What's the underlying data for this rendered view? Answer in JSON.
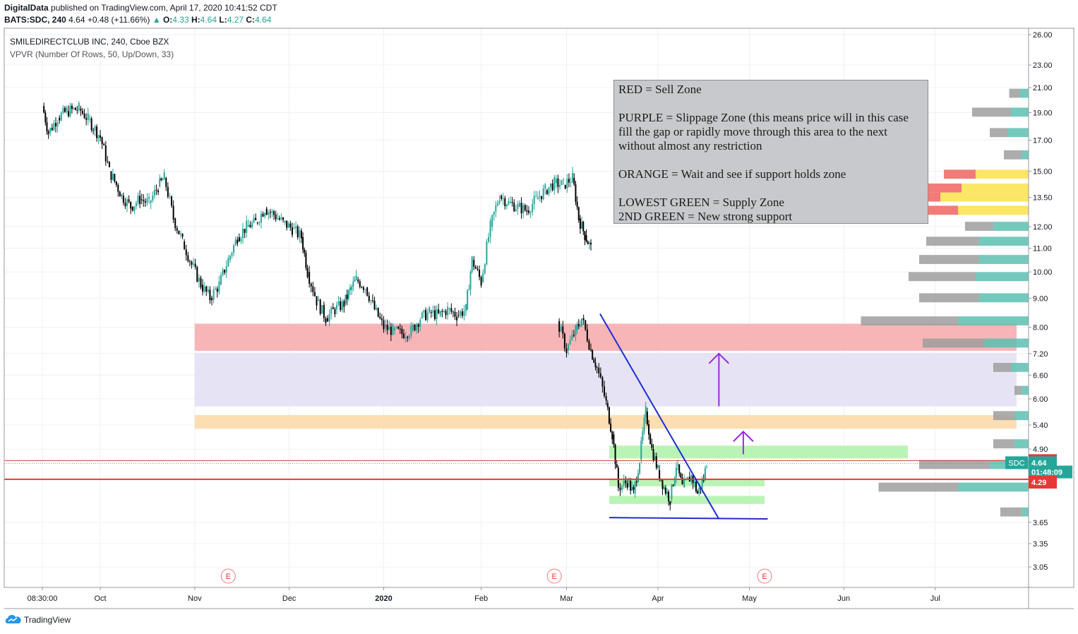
{
  "header": {
    "publisher": "DigitalData",
    "published_text": "published on TradingView.com, April 17, 2020 10:41:52 CDT",
    "symbol": "BATS:SDC, 240",
    "last": "4.64",
    "change_arrow": "▲",
    "change": "+0.48 (+11.66%)",
    "o_label": "O:",
    "o_value": "4.33",
    "h_label": "H:",
    "h_value": "4.64",
    "l_label": "L:",
    "l_value": "4.27",
    "c_label": "C:",
    "c_value": "4.64"
  },
  "legend": {
    "series_title": "SMILEDIRECTCLUB INC, 240, Cboe BZX",
    "indicator": "VPVR (Number Of Rows, 50, Up/Down, 33)"
  },
  "annotation": {
    "line1": "RED = Sell Zone",
    "line2": "PURPLE = Slippage Zone (this means price will in this case fill the gap or rapidly move through this area to the next without almost any restriction",
    "line3": "ORANGE = Wait and see if support holds zone",
    "line4": "LOWEST GREEN = Supply Zone",
    "line5": "2ND GREEN = New strong support"
  },
  "footer": {
    "brand": "TradingView"
  },
  "colors": {
    "up": "#26a69a",
    "down": "#000000",
    "red_zone": "#f7a8aa",
    "purple_zone": "#e2dff2",
    "orange_zone": "#fbd8a5",
    "green_zone": "#aef2a8",
    "trendline": "#1e2cd6",
    "arrow": "#9c27e0",
    "price_line": "#e53935",
    "vp_up": "#5dbfb0",
    "vp_down": "#9e9e9e",
    "vp_value_area_up": "#fce24a",
    "vp_value_area_down": "#f06460"
  },
  "chart_data": {
    "type": "candlestick",
    "title": "SMILEDIRECTCLUB INC, 240, Cboe BZX",
    "x_tick_labels": [
      "08:30:00",
      "Oct",
      "Nov",
      "Dec",
      "2020",
      "Feb",
      "Mar",
      "Apr",
      "May",
      "Jun",
      "Jul"
    ],
    "y_tick_labels": [
      "26.00",
      "23.00",
      "21.00",
      "19.00",
      "17.00",
      "15.00",
      "13.50",
      "12.00",
      "11.00",
      "10.00",
      "9.00",
      "8.00",
      "7.20",
      "6.60",
      "6.00",
      "5.40",
      "4.90",
      "3.65",
      "3.35",
      "3.05"
    ],
    "y_scale": "log",
    "ylim": [
      2.8,
      27
    ],
    "price_labels": [
      {
        "text": "4.68",
        "value": 4.68,
        "kind": "red"
      },
      {
        "text": "4.64",
        "value": 4.64,
        "kind": "last",
        "tag": "SDC"
      },
      {
        "text": "01:48:09",
        "value": 4.47,
        "kind": "countdown"
      },
      {
        "text": "4.29",
        "value": 4.29,
        "kind": "red"
      }
    ],
    "horizontal_lines": [
      4.68,
      4.34
    ],
    "zones": [
      {
        "name": "RED",
        "from": 7.28,
        "to": 8.12,
        "start": "2019-11-01",
        "end": "2020-07-30"
      },
      {
        "name": "PURPLE",
        "from": 5.82,
        "to": 7.22,
        "start": "2019-11-01",
        "end": "2020-07-30"
      },
      {
        "name": "ORANGE",
        "from": 5.32,
        "to": 5.62,
        "start": "2019-11-01",
        "end": "2020-07-30"
      },
      {
        "name": "2ND GREEN",
        "from": 4.72,
        "to": 4.97,
        "start": "2020-03-16",
        "end": "2020-06-22"
      },
      {
        "name": "GREEN",
        "from": 4.22,
        "to": 4.34,
        "start": "2020-03-16",
        "end": "2020-05-06"
      },
      {
        "name": "LOWEST GREEN",
        "from": 3.93,
        "to": 4.06,
        "start": "2020-03-16",
        "end": "2020-05-06"
      }
    ],
    "trendlines": [
      {
        "from": [
          "2020-03-13",
          8.45
        ],
        "to": [
          "2020-04-21",
          3.7
        ]
      },
      {
        "from": [
          "2020-03-16",
          3.72
        ],
        "to": [
          "2020-05-07",
          3.7
        ]
      }
    ],
    "arrows": [
      {
        "x": "2020-04-21",
        "from": 5.82,
        "to": 7.2
      },
      {
        "x": "2020-04-29",
        "from": 4.8,
        "to": 5.26
      }
    ],
    "earnings_markers": [
      "2019-11-12",
      "2020-02-27",
      "2020-05-06"
    ],
    "series": [
      {
        "name": "SDC",
        "points": [
          [
            "2019-09-12",
            19.5
          ],
          [
            "2019-09-14",
            17.5
          ],
          [
            "2019-09-17",
            18.6
          ],
          [
            "2019-09-20",
            19.1
          ],
          [
            "2019-09-24",
            19.3
          ],
          [
            "2019-09-27",
            18.5
          ],
          [
            "2019-10-01",
            17.2
          ],
          [
            "2019-10-04",
            15.0
          ],
          [
            "2019-10-08",
            13.6
          ],
          [
            "2019-10-11",
            13.0
          ],
          [
            "2019-10-14",
            13.4
          ],
          [
            "2019-10-17",
            13.2
          ],
          [
            "2019-10-20",
            14.1
          ],
          [
            "2019-10-22",
            14.6
          ],
          [
            "2019-10-25",
            12.4
          ],
          [
            "2019-10-28",
            11.3
          ],
          [
            "2019-10-31",
            10.3
          ],
          [
            "2019-11-03",
            9.5
          ],
          [
            "2019-11-06",
            9.0
          ],
          [
            "2019-11-09",
            9.5
          ],
          [
            "2019-11-12",
            10.5
          ],
          [
            "2019-11-15",
            11.5
          ],
          [
            "2019-11-18",
            12.0
          ],
          [
            "2019-11-21",
            12.2
          ],
          [
            "2019-11-24",
            12.9
          ],
          [
            "2019-11-27",
            12.6
          ],
          [
            "2019-11-30",
            12.2
          ],
          [
            "2019-12-03",
            11.9
          ],
          [
            "2019-12-06",
            11.5
          ],
          [
            "2019-12-08",
            10.0
          ],
          [
            "2019-12-11",
            8.9
          ],
          [
            "2019-12-14",
            8.3
          ],
          [
            "2019-12-17",
            8.6
          ],
          [
            "2019-12-20",
            8.8
          ],
          [
            "2019-12-22",
            9.3
          ],
          [
            "2019-12-24",
            9.7
          ],
          [
            "2019-12-27",
            9.4
          ],
          [
            "2019-12-30",
            8.6
          ],
          [
            "2020-01-02",
            8.0
          ],
          [
            "2020-01-05",
            7.9
          ],
          [
            "2020-01-08",
            7.8
          ],
          [
            "2020-01-11",
            7.9
          ],
          [
            "2020-01-14",
            8.3
          ],
          [
            "2020-01-17",
            8.5
          ],
          [
            "2020-01-20",
            8.4
          ],
          [
            "2020-01-23",
            8.6
          ],
          [
            "2020-01-26",
            8.4
          ],
          [
            "2020-01-29",
            8.6
          ],
          [
            "2020-01-31",
            10.5
          ],
          [
            "2020-02-03",
            9.6
          ],
          [
            "2020-02-06",
            12.0
          ],
          [
            "2020-02-09",
            13.6
          ],
          [
            "2020-02-12",
            13.2
          ],
          [
            "2020-02-15",
            13.0
          ],
          [
            "2020-02-18",
            12.8
          ],
          [
            "2020-02-21",
            13.4
          ],
          [
            "2020-02-24",
            13.9
          ],
          [
            "2020-02-27",
            14.3
          ],
          [
            "2020-03-01",
            14.2
          ],
          [
            "2020-03-04",
            14.6
          ],
          [
            "2020-03-06",
            12.4
          ],
          [
            "2020-03-08",
            11.6
          ],
          [
            "2020-03-10",
            11.0
          ]
        ]
      },
      {
        "name": "SDC",
        "points": [
          [
            "2020-02-28",
            8.2
          ],
          [
            "2020-03-02",
            7.3
          ],
          [
            "2020-03-05",
            7.9
          ],
          [
            "2020-03-07",
            8.3
          ],
          [
            "2020-03-10",
            7.3
          ],
          [
            "2020-03-12",
            6.8
          ],
          [
            "2020-03-15",
            5.9
          ],
          [
            "2020-03-17",
            5.2
          ],
          [
            "2020-03-19",
            4.2
          ],
          [
            "2020-03-22",
            4.3
          ],
          [
            "2020-03-24",
            4.1
          ],
          [
            "2020-03-26",
            4.7
          ],
          [
            "2020-03-28",
            5.7
          ],
          [
            "2020-03-30",
            4.9
          ],
          [
            "2020-04-01",
            4.5
          ],
          [
            "2020-04-03",
            4.2
          ],
          [
            "2020-04-05",
            4.0
          ],
          [
            "2020-04-07",
            4.6
          ],
          [
            "2020-04-09",
            4.2
          ],
          [
            "2020-04-12",
            4.4
          ],
          [
            "2020-04-14",
            4.1
          ],
          [
            "2020-04-16",
            4.35
          ],
          [
            "2020-04-17",
            4.64
          ]
        ]
      }
    ],
    "volume_profile": [
      {
        "price": 20.5,
        "up": 0.05,
        "down": 0.06
      },
      {
        "price": 19.0,
        "up": 0.1,
        "down": 0.22
      },
      {
        "price": 17.5,
        "up": 0.12,
        "down": 0.1
      },
      {
        "price": 16.0,
        "up": 0.04,
        "down": 0.1
      },
      {
        "price": 14.8,
        "up": 0.3,
        "down": 0.18
      },
      {
        "price": 14.0,
        "up": 0.38,
        "down": 0.3
      },
      {
        "price": 13.5,
        "up": 0.5,
        "down": 1.0
      },
      {
        "price": 12.8,
        "up": 0.4,
        "down": 0.45
      },
      {
        "price": 12.0,
        "up": 0.2,
        "down": 0.16
      },
      {
        "price": 11.3,
        "up": 0.28,
        "down": 0.3
      },
      {
        "price": 10.5,
        "up": 0.28,
        "down": 0.34
      },
      {
        "price": 9.8,
        "up": 0.3,
        "down": 0.38
      },
      {
        "price": 9.0,
        "up": 0.28,
        "down": 0.34
      },
      {
        "price": 8.2,
        "up": 0.4,
        "down": 0.55
      },
      {
        "price": 7.5,
        "up": 0.25,
        "down": 0.35
      },
      {
        "price": 6.8,
        "up": 0.1,
        "down": 0.1
      },
      {
        "price": 6.2,
        "up": 0.04,
        "down": 0.04
      },
      {
        "price": 5.6,
        "up": 0.08,
        "down": 0.12
      },
      {
        "price": 5.0,
        "up": 0.08,
        "down": 0.12
      },
      {
        "price": 4.6,
        "up": 0.22,
        "down": 0.4
      },
      {
        "price": 4.2,
        "up": 0.4,
        "down": 0.45
      },
      {
        "price": 3.8,
        "up": 0.04,
        "down": 0.12
      }
    ]
  }
}
